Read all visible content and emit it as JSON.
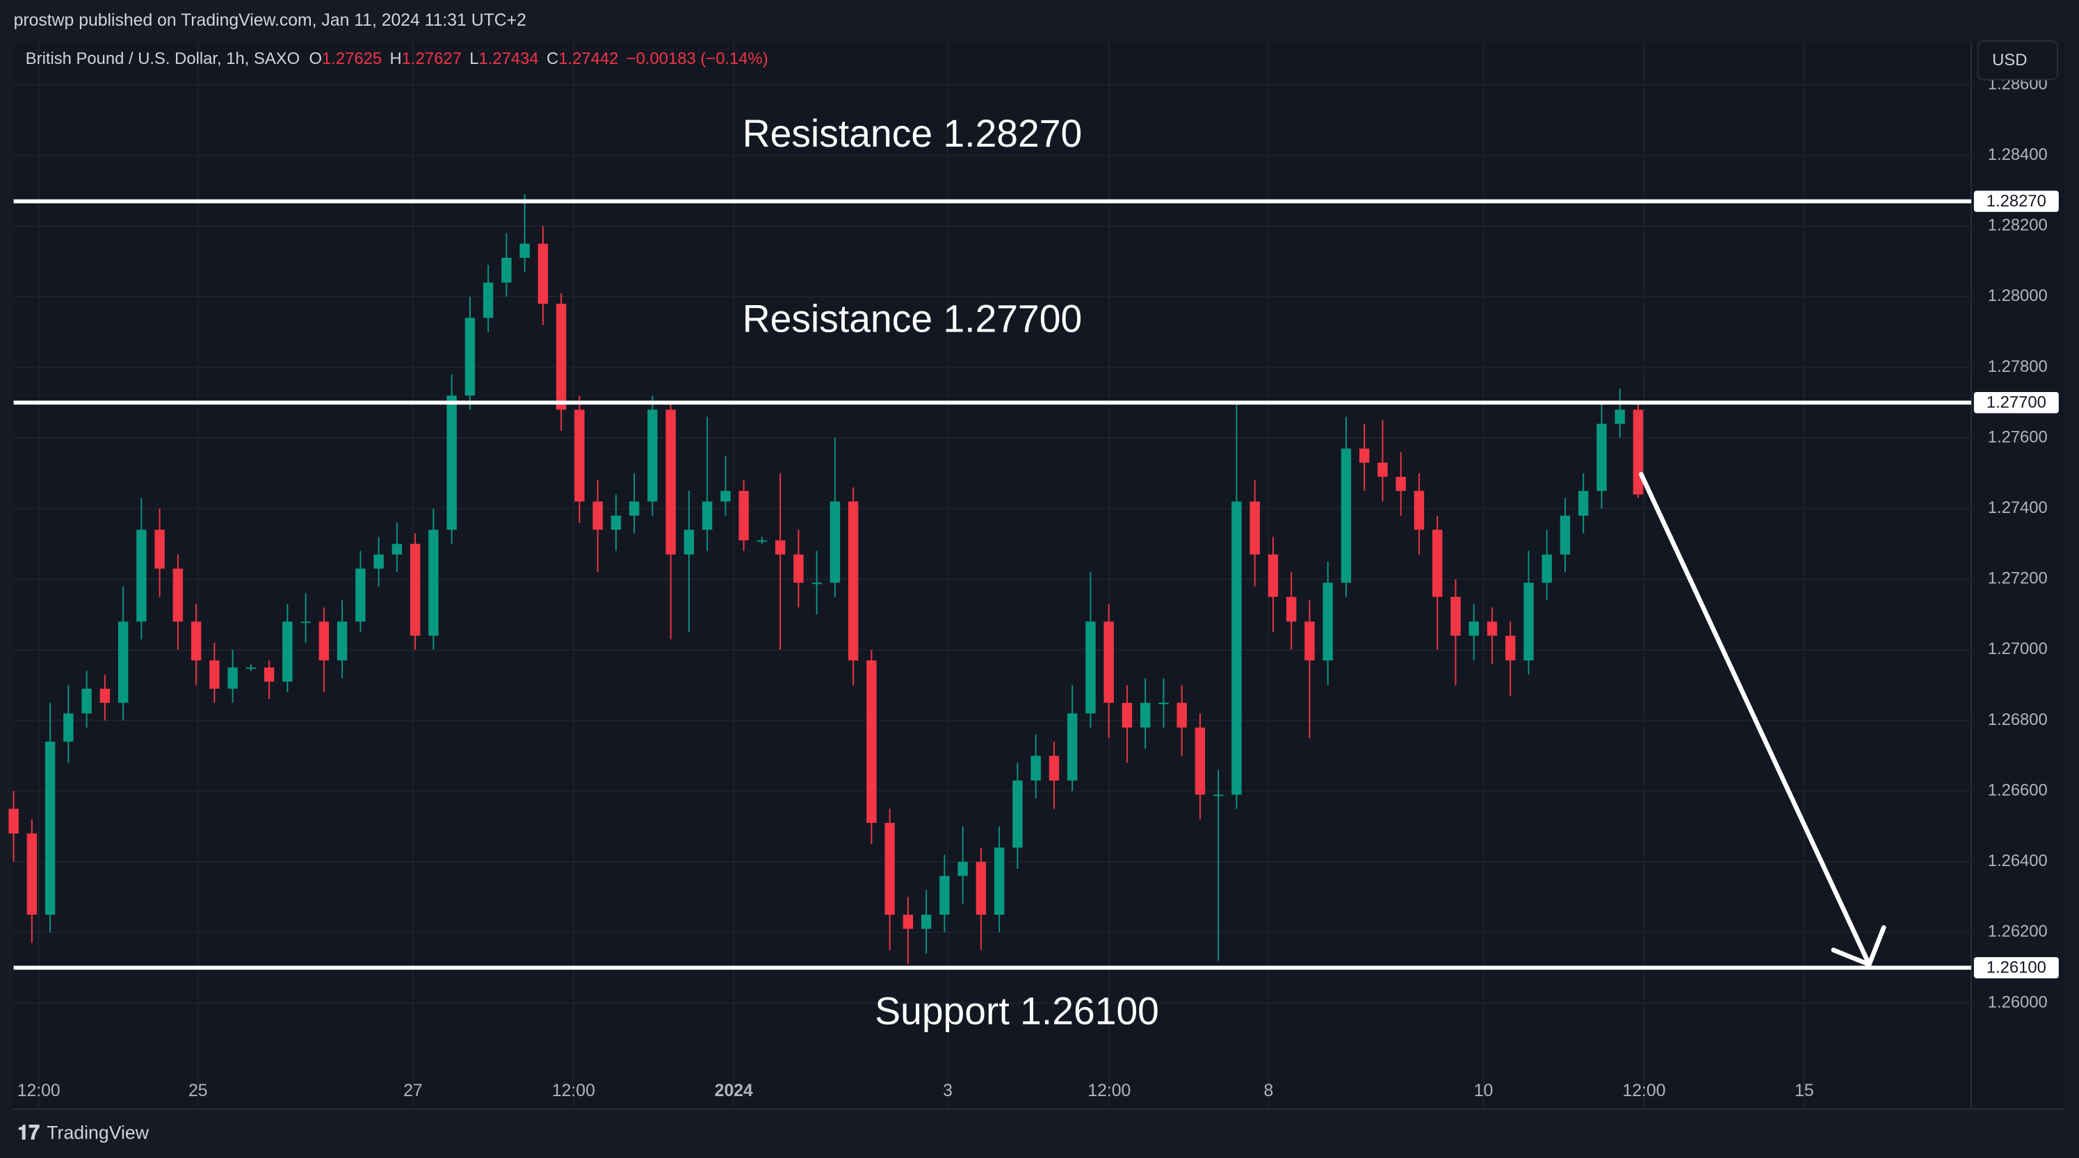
{
  "header": {
    "published": "prostwp published on TradingView.com, Jan 11, 2024 11:31 UTC+2",
    "symbol": "British Pound / U.S. Dollar, 1h, SAXO",
    "ohlc": [
      {
        "key": "O",
        "value": "1.27625"
      },
      {
        "key": "H",
        "value": "1.27627"
      },
      {
        "key": "L",
        "value": "1.27434"
      },
      {
        "key": "C",
        "value": "1.27442"
      }
    ],
    "change": "−0.00183 (−0.14%)",
    "currency": "USD",
    "brand": "TradingView"
  },
  "chart_data": {
    "type": "candlestick",
    "up_color": "#089981",
    "down_color": "#f23645",
    "grid": true,
    "xlim": [
      0,
      429
    ],
    "xticks": [
      {
        "value": 5.5,
        "label": "12:00"
      },
      {
        "value": 40.4,
        "label": "25"
      },
      {
        "value": 87.5,
        "label": "27"
      },
      {
        "value": 122.7,
        "label": "12:00"
      },
      {
        "value": 157.8,
        "label": "2024"
      },
      {
        "value": 204.7,
        "label": "3"
      },
      {
        "value": 240.1,
        "label": "12:00"
      },
      {
        "value": 275,
        "label": "8"
      },
      {
        "value": 322.1,
        "label": "10"
      },
      {
        "value": 357.3,
        "label": "12:00"
      },
      {
        "value": 392.4,
        "label": "15"
      }
    ],
    "ylim": [
      1.257,
      1.2872
    ],
    "yticks": [
      {
        "value": 1.26,
        "label": "1.26000"
      },
      {
        "value": 1.262,
        "label": "1.26200"
      },
      {
        "value": 1.264,
        "label": "1.26400"
      },
      {
        "value": 1.266,
        "label": "1.26600"
      },
      {
        "value": 1.268,
        "label": "1.26800"
      },
      {
        "value": 1.27,
        "label": "1.27000"
      },
      {
        "value": 1.272,
        "label": "1.27200"
      },
      {
        "value": 1.274,
        "label": "1.27400"
      },
      {
        "value": 1.276,
        "label": "1.27600"
      },
      {
        "value": 1.278,
        "label": "1.27800"
      },
      {
        "value": 1.28,
        "label": "1.28000"
      },
      {
        "value": 1.282,
        "label": "1.28200"
      },
      {
        "value": 1.284,
        "label": "1.28400"
      },
      {
        "value": 1.286,
        "label": "1.28600"
      }
    ],
    "levels": [
      {
        "value": 1.2827,
        "label": "1.28270",
        "annotation": "Resistance 1.28270"
      },
      {
        "value": 1.277,
        "label": "1.27700",
        "annotation": "Resistance 1.27700"
      },
      {
        "value": 1.261,
        "label": "1.26100",
        "annotation": "Support 1.26100"
      }
    ],
    "series": [
      {
        "name": "GBPUSD",
        "x": [
          0,
          4,
          8,
          12,
          16,
          20,
          24,
          28,
          32,
          36,
          40,
          44,
          48,
          52,
          56,
          60,
          64,
          68,
          72,
          76,
          80,
          84,
          88,
          92,
          96,
          100,
          104,
          108,
          112,
          116,
          120,
          124,
          128,
          132,
          136,
          140,
          144,
          148,
          152,
          156,
          160,
          164,
          168,
          172,
          176,
          180,
          184,
          188,
          192,
          196,
          200,
          204,
          208,
          212,
          216,
          220,
          224,
          228,
          232,
          236,
          240,
          244,
          248,
          252,
          256,
          260,
          264,
          268,
          272,
          276,
          280,
          284,
          288,
          292,
          296,
          300,
          304,
          308,
          312,
          316,
          320,
          324,
          328,
          332,
          336,
          340,
          344,
          348,
          352,
          356
        ],
        "open": [
          1.2655,
          1.2648,
          1.2625,
          1.2674,
          1.2682,
          1.2689,
          1.2685,
          1.2708,
          1.2734,
          1.2723,
          1.2708,
          1.2697,
          1.2689,
          1.2695,
          1.2695,
          1.2691,
          1.2708,
          1.2708,
          1.2697,
          1.2708,
          1.2723,
          1.2727,
          1.273,
          1.2704,
          1.2734,
          1.2772,
          1.2794,
          1.2804,
          1.2811,
          1.2815,
          1.2798,
          1.2768,
          1.2742,
          1.2734,
          1.2738,
          1.2742,
          1.2768,
          1.2727,
          1.2734,
          1.2742,
          1.2745,
          1.2731,
          1.2731,
          1.2727,
          1.2719,
          1.2719,
          1.2742,
          1.2697,
          1.2651,
          1.2625,
          1.2621,
          1.2625,
          1.2636,
          1.264,
          1.2625,
          1.2644,
          1.2663,
          1.267,
          1.2663,
          1.2682,
          1.2708,
          1.2685,
          1.2678,
          1.2685,
          1.2685,
          1.2678,
          1.2659,
          1.2659,
          1.2742,
          1.2727,
          1.2715,
          1.2708,
          1.2697,
          1.2719,
          1.2757,
          1.2753,
          1.2749,
          1.2745,
          1.2734,
          1.2715,
          1.2704,
          1.2708,
          1.2704,
          1.2697,
          1.2719,
          1.2727,
          1.2738,
          1.2745,
          1.2764,
          1.2768
        ],
        "high": [
          1.266,
          1.2652,
          1.2685,
          1.269,
          1.2694,
          1.2693,
          1.2718,
          1.2743,
          1.274,
          1.2727,
          1.2713,
          1.2702,
          1.27,
          1.2696,
          1.2697,
          1.2713,
          1.2716,
          1.2712,
          1.2714,
          1.2728,
          1.2732,
          1.2736,
          1.2733,
          1.274,
          1.2778,
          1.28,
          1.2809,
          1.2818,
          1.2829,
          1.282,
          1.2801,
          1.2772,
          1.2748,
          1.2744,
          1.275,
          1.2772,
          1.277,
          1.2745,
          1.2766,
          1.2755,
          1.2748,
          1.2732,
          1.275,
          1.2734,
          1.2728,
          1.276,
          1.2746,
          1.27,
          1.2655,
          1.263,
          1.2632,
          1.2642,
          1.265,
          1.2644,
          1.265,
          1.2668,
          1.2676,
          1.2674,
          1.269,
          1.2722,
          1.2713,
          1.269,
          1.2692,
          1.2692,
          1.269,
          1.2682,
          1.2666,
          1.277,
          1.2748,
          1.2732,
          1.2722,
          1.2714,
          1.2725,
          1.2766,
          1.2764,
          1.2765,
          1.2756,
          1.275,
          1.2738,
          1.272,
          1.2713,
          1.2712,
          1.2708,
          1.2728,
          1.2734,
          1.2743,
          1.275,
          1.277,
          1.2774,
          1.277
        ],
        "low": [
          1.264,
          1.2617,
          1.262,
          1.2668,
          1.2678,
          1.268,
          1.268,
          1.2703,
          1.2715,
          1.27,
          1.269,
          1.2685,
          1.2685,
          1.2694,
          1.2686,
          1.2688,
          1.2702,
          1.2688,
          1.2692,
          1.2705,
          1.2718,
          1.2722,
          1.27,
          1.27,
          1.273,
          1.2768,
          1.279,
          1.28,
          1.2807,
          1.2792,
          1.2762,
          1.2736,
          1.2722,
          1.2728,
          1.2733,
          1.2738,
          1.2703,
          1.2705,
          1.2728,
          1.2738,
          1.2728,
          1.273,
          1.27,
          1.2712,
          1.271,
          1.2715,
          1.269,
          1.2645,
          1.2615,
          1.2611,
          1.2614,
          1.262,
          1.2628,
          1.2615,
          1.262,
          1.2638,
          1.2658,
          1.2655,
          1.266,
          1.2678,
          1.2675,
          1.2668,
          1.2672,
          1.2678,
          1.267,
          1.2652,
          1.2612,
          1.2655,
          1.2718,
          1.2705,
          1.27,
          1.2675,
          1.269,
          1.2715,
          1.2745,
          1.2742,
          1.2738,
          1.2727,
          1.27,
          1.269,
          1.2697,
          1.2696,
          1.2687,
          1.2693,
          1.2714,
          1.2722,
          1.2733,
          1.274,
          1.276,
          1.2743
        ],
        "close": [
          1.2648,
          1.2625,
          1.2674,
          1.2682,
          1.2689,
          1.2685,
          1.2708,
          1.2734,
          1.2723,
          1.2708,
          1.2697,
          1.2689,
          1.2695,
          1.2695,
          1.2691,
          1.2708,
          1.2708,
          1.2697,
          1.2708,
          1.2723,
          1.2727,
          1.273,
          1.2704,
          1.2734,
          1.2772,
          1.2794,
          1.2804,
          1.2811,
          1.2815,
          1.2798,
          1.2768,
          1.2742,
          1.2734,
          1.2738,
          1.2742,
          1.2768,
          1.2727,
          1.2734,
          1.2742,
          1.2745,
          1.2731,
          1.2731,
          1.2727,
          1.2719,
          1.2719,
          1.2742,
          1.2697,
          1.2651,
          1.2625,
          1.2621,
          1.2625,
          1.2636,
          1.264,
          1.2625,
          1.2644,
          1.2663,
          1.267,
          1.2663,
          1.2682,
          1.2708,
          1.2685,
          1.2678,
          1.2685,
          1.2685,
          1.2678,
          1.2659,
          1.2659,
          1.2742,
          1.2727,
          1.2715,
          1.2708,
          1.2697,
          1.2719,
          1.2757,
          1.2753,
          1.2749,
          1.2745,
          1.2734,
          1.2715,
          1.2704,
          1.2708,
          1.2704,
          1.2697,
          1.2719,
          1.2727,
          1.2738,
          1.2745,
          1.2764,
          1.2768,
          1.2744
        ]
      }
    ]
  }
}
